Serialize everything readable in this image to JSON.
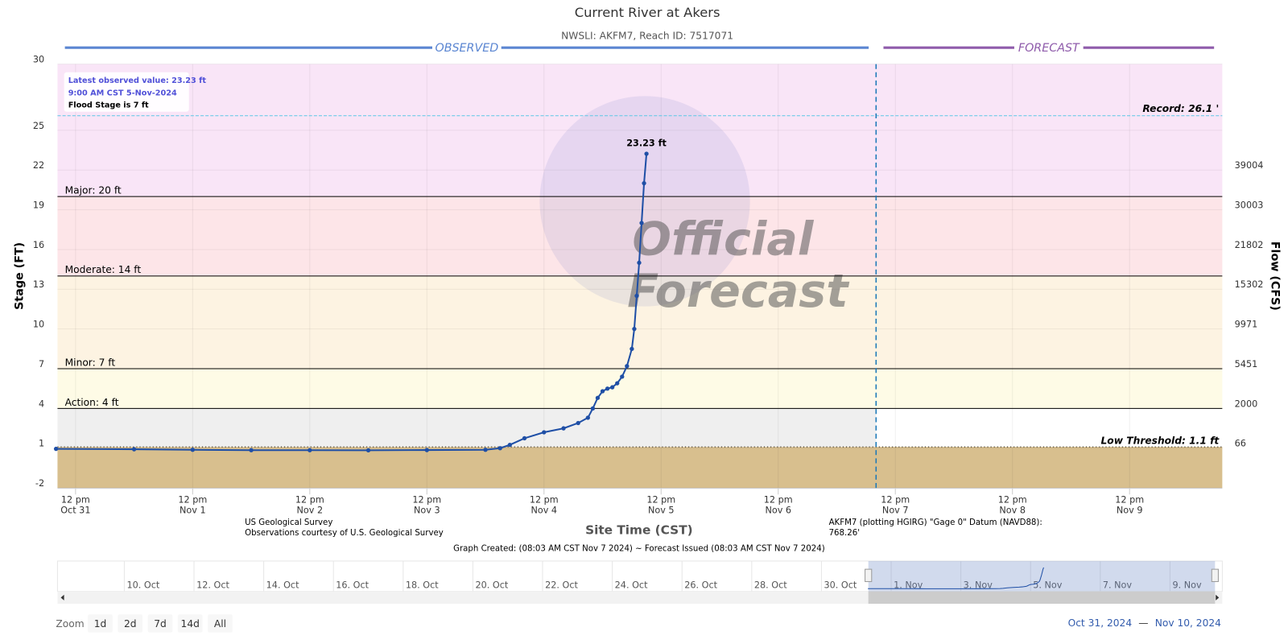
{
  "chart_data": {
    "type": "line",
    "title": "Current River at Akers",
    "subtitle": "NWSLI: AKFM7, Reach ID: 7517071",
    "sections": {
      "observed": "OBSERVED",
      "forecast": "FORECAST",
      "divider": "2024-11-07T08:03",
      "observed_color": "#5b86d2",
      "forecast_color": "#8f5cab"
    },
    "y_label": "Stage (FT)",
    "y2_label": "Flow (CFS)",
    "x_label": "Site Time (CST)",
    "xlim": [
      "2024-10-31T08:18",
      "2024-11-10T07:00"
    ],
    "ylim": [
      -2,
      30
    ],
    "yticks": [
      -2,
      1,
      4,
      7,
      10,
      13,
      16,
      19,
      22,
      25,
      30
    ],
    "flow_ticks": [
      {
        "stage": 1,
        "flow": 66
      },
      {
        "stage": 4,
        "flow": 2000
      },
      {
        "stage": 7,
        "flow": 5451
      },
      {
        "stage": 10,
        "flow": 9971
      },
      {
        "stage": 13,
        "flow": 15302
      },
      {
        "stage": 16,
        "flow": 21802
      },
      {
        "stage": 19,
        "flow": 30003
      },
      {
        "stage": 22,
        "flow": 39004
      }
    ],
    "xticks": [
      {
        "value": "2024-10-31T12:00",
        "label": [
          "12 pm",
          "Oct 31"
        ]
      },
      {
        "value": "2024-11-01T12:00",
        "label": [
          "12 pm",
          "Nov 1"
        ]
      },
      {
        "value": "2024-11-02T12:00",
        "label": [
          "12 pm",
          "Nov 2"
        ]
      },
      {
        "value": "2024-11-03T12:00",
        "label": [
          "12 pm",
          "Nov 3"
        ]
      },
      {
        "value": "2024-11-04T12:00",
        "label": [
          "12 pm",
          "Nov 4"
        ]
      },
      {
        "value": "2024-11-05T12:00",
        "label": [
          "12 pm",
          "Nov 5"
        ]
      },
      {
        "value": "2024-11-06T12:00",
        "label": [
          "12 pm",
          "Nov 6"
        ]
      },
      {
        "value": "2024-11-07T12:00",
        "label": [
          "12 pm",
          "Nov 7"
        ]
      },
      {
        "value": "2024-11-08T12:00",
        "label": [
          "12 pm",
          "Nov 8"
        ]
      },
      {
        "value": "2024-11-09T12:00",
        "label": [
          "12 pm",
          "Nov 9"
        ]
      }
    ],
    "grid": true,
    "series": [
      {
        "color": "#1f4fa6",
        "x": [
          "2024-10-31T08:00",
          "2024-11-01T00:00",
          "2024-11-01T12:00",
          "2024-11-02T00:00",
          "2024-11-02T12:00",
          "2024-11-03T00:00",
          "2024-11-03T12:00",
          "2024-11-04T00:00",
          "2024-11-04T03:00",
          "2024-11-04T05:00",
          "2024-11-04T08:00",
          "2024-11-04T12:00",
          "2024-11-04T16:00",
          "2024-11-04T19:00",
          "2024-11-04T21:00",
          "2024-11-04T22:00",
          "2024-11-04T23:00",
          "2024-11-05T00:00",
          "2024-11-05T01:00",
          "2024-11-05T02:00",
          "2024-11-05T03:00",
          "2024-11-05T04:00",
          "2024-11-05T05:00",
          "2024-11-05T06:00",
          "2024-11-05T06:30",
          "2024-11-05T07:00",
          "2024-11-05T07:30",
          "2024-11-05T08:00",
          "2024-11-05T08:30",
          "2024-11-05T09:00"
        ],
        "values": [
          0.95,
          0.92,
          0.88,
          0.85,
          0.85,
          0.84,
          0.86,
          0.88,
          1.0,
          1.25,
          1.75,
          2.2,
          2.5,
          2.9,
          3.3,
          4.0,
          4.8,
          5.3,
          5.5,
          5.6,
          5.9,
          6.4,
          7.2,
          8.5,
          10.0,
          12.5,
          15.0,
          18.0,
          21.0,
          23.23
        ],
        "last_value_label": "23.23 ft"
      }
    ],
    "thresholds": [
      {
        "value": 1.1,
        "label": "Low Threshold: 1.1 ft",
        "line": "dotted",
        "align": "right",
        "band_color": "#efefef",
        "band_observed_only": true
      },
      {
        "value": 4,
        "label": "Action: 4 ft",
        "line": "solid",
        "align": "left",
        "band_color": "#fefbe6"
      },
      {
        "value": 7,
        "label": "Minor: 7 ft",
        "line": "solid",
        "align": "left",
        "band_color": "#fdf3e2"
      },
      {
        "value": 14,
        "label": "Moderate: 14 ft",
        "line": "solid",
        "align": "left",
        "band_color": "#fde5e8"
      },
      {
        "value": 20,
        "label": "Major: 20 ft",
        "line": "solid",
        "align": "left",
        "band_color": "#f9e5f7"
      }
    ],
    "base_band_color": "#d8bf8e",
    "record": {
      "value": 26.1,
      "label": "Record: 26.1 '",
      "color": "#5cc8e6"
    },
    "info_box": [
      "Latest observed value: 23.23 ft",
      "9:00 AM CST 5-Nov-2024",
      "Flood Stage is 7 ft"
    ],
    "credits_left": [
      "US Geological Survey",
      "Observations courtesy of U.S. Geological Survey"
    ],
    "credits_right": [
      "AKFM7 (plotting HGIRG) \"Gage 0\" Datum (NAVD88):",
      "768.26'"
    ],
    "footer": "Graph Created: (08:03 AM CST Nov 7 2024) ~ Forecast Issued (08:03 AM CST Nov 7 2024)",
    "watermark": [
      "Official",
      "Forecast"
    ],
    "navigator": {
      "xlim": [
        "2024-10-08T02:00",
        "2024-11-10T12:00"
      ],
      "xticks": [
        {
          "value": "2024-10-10",
          "label": "10. Oct"
        },
        {
          "value": "2024-10-12",
          "label": "12. Oct"
        },
        {
          "value": "2024-10-14",
          "label": "14. Oct"
        },
        {
          "value": "2024-10-16",
          "label": "16. Oct"
        },
        {
          "value": "2024-10-18",
          "label": "18. Oct"
        },
        {
          "value": "2024-10-20",
          "label": "20. Oct"
        },
        {
          "value": "2024-10-22",
          "label": "22. Oct"
        },
        {
          "value": "2024-10-24",
          "label": "24. Oct"
        },
        {
          "value": "2024-10-26",
          "label": "26. Oct"
        },
        {
          "value": "2024-10-28",
          "label": "28. Oct"
        },
        {
          "value": "2024-10-30",
          "label": "30. Oct"
        },
        {
          "value": "2024-11-01",
          "label": "1. Nov"
        },
        {
          "value": "2024-11-03",
          "label": "3. Nov"
        },
        {
          "value": "2024-11-05",
          "label": "5. Nov"
        },
        {
          "value": "2024-11-07",
          "label": "7. Nov"
        },
        {
          "value": "2024-11-09",
          "label": "9. Nov"
        }
      ]
    },
    "zoom": {
      "label": "Zoom",
      "buttons": [
        "1d",
        "2d",
        "7d",
        "14d",
        "All"
      ]
    },
    "range": {
      "from": "Oct 31, 2024",
      "separator": "—",
      "to": "Nov 10, 2024"
    }
  }
}
